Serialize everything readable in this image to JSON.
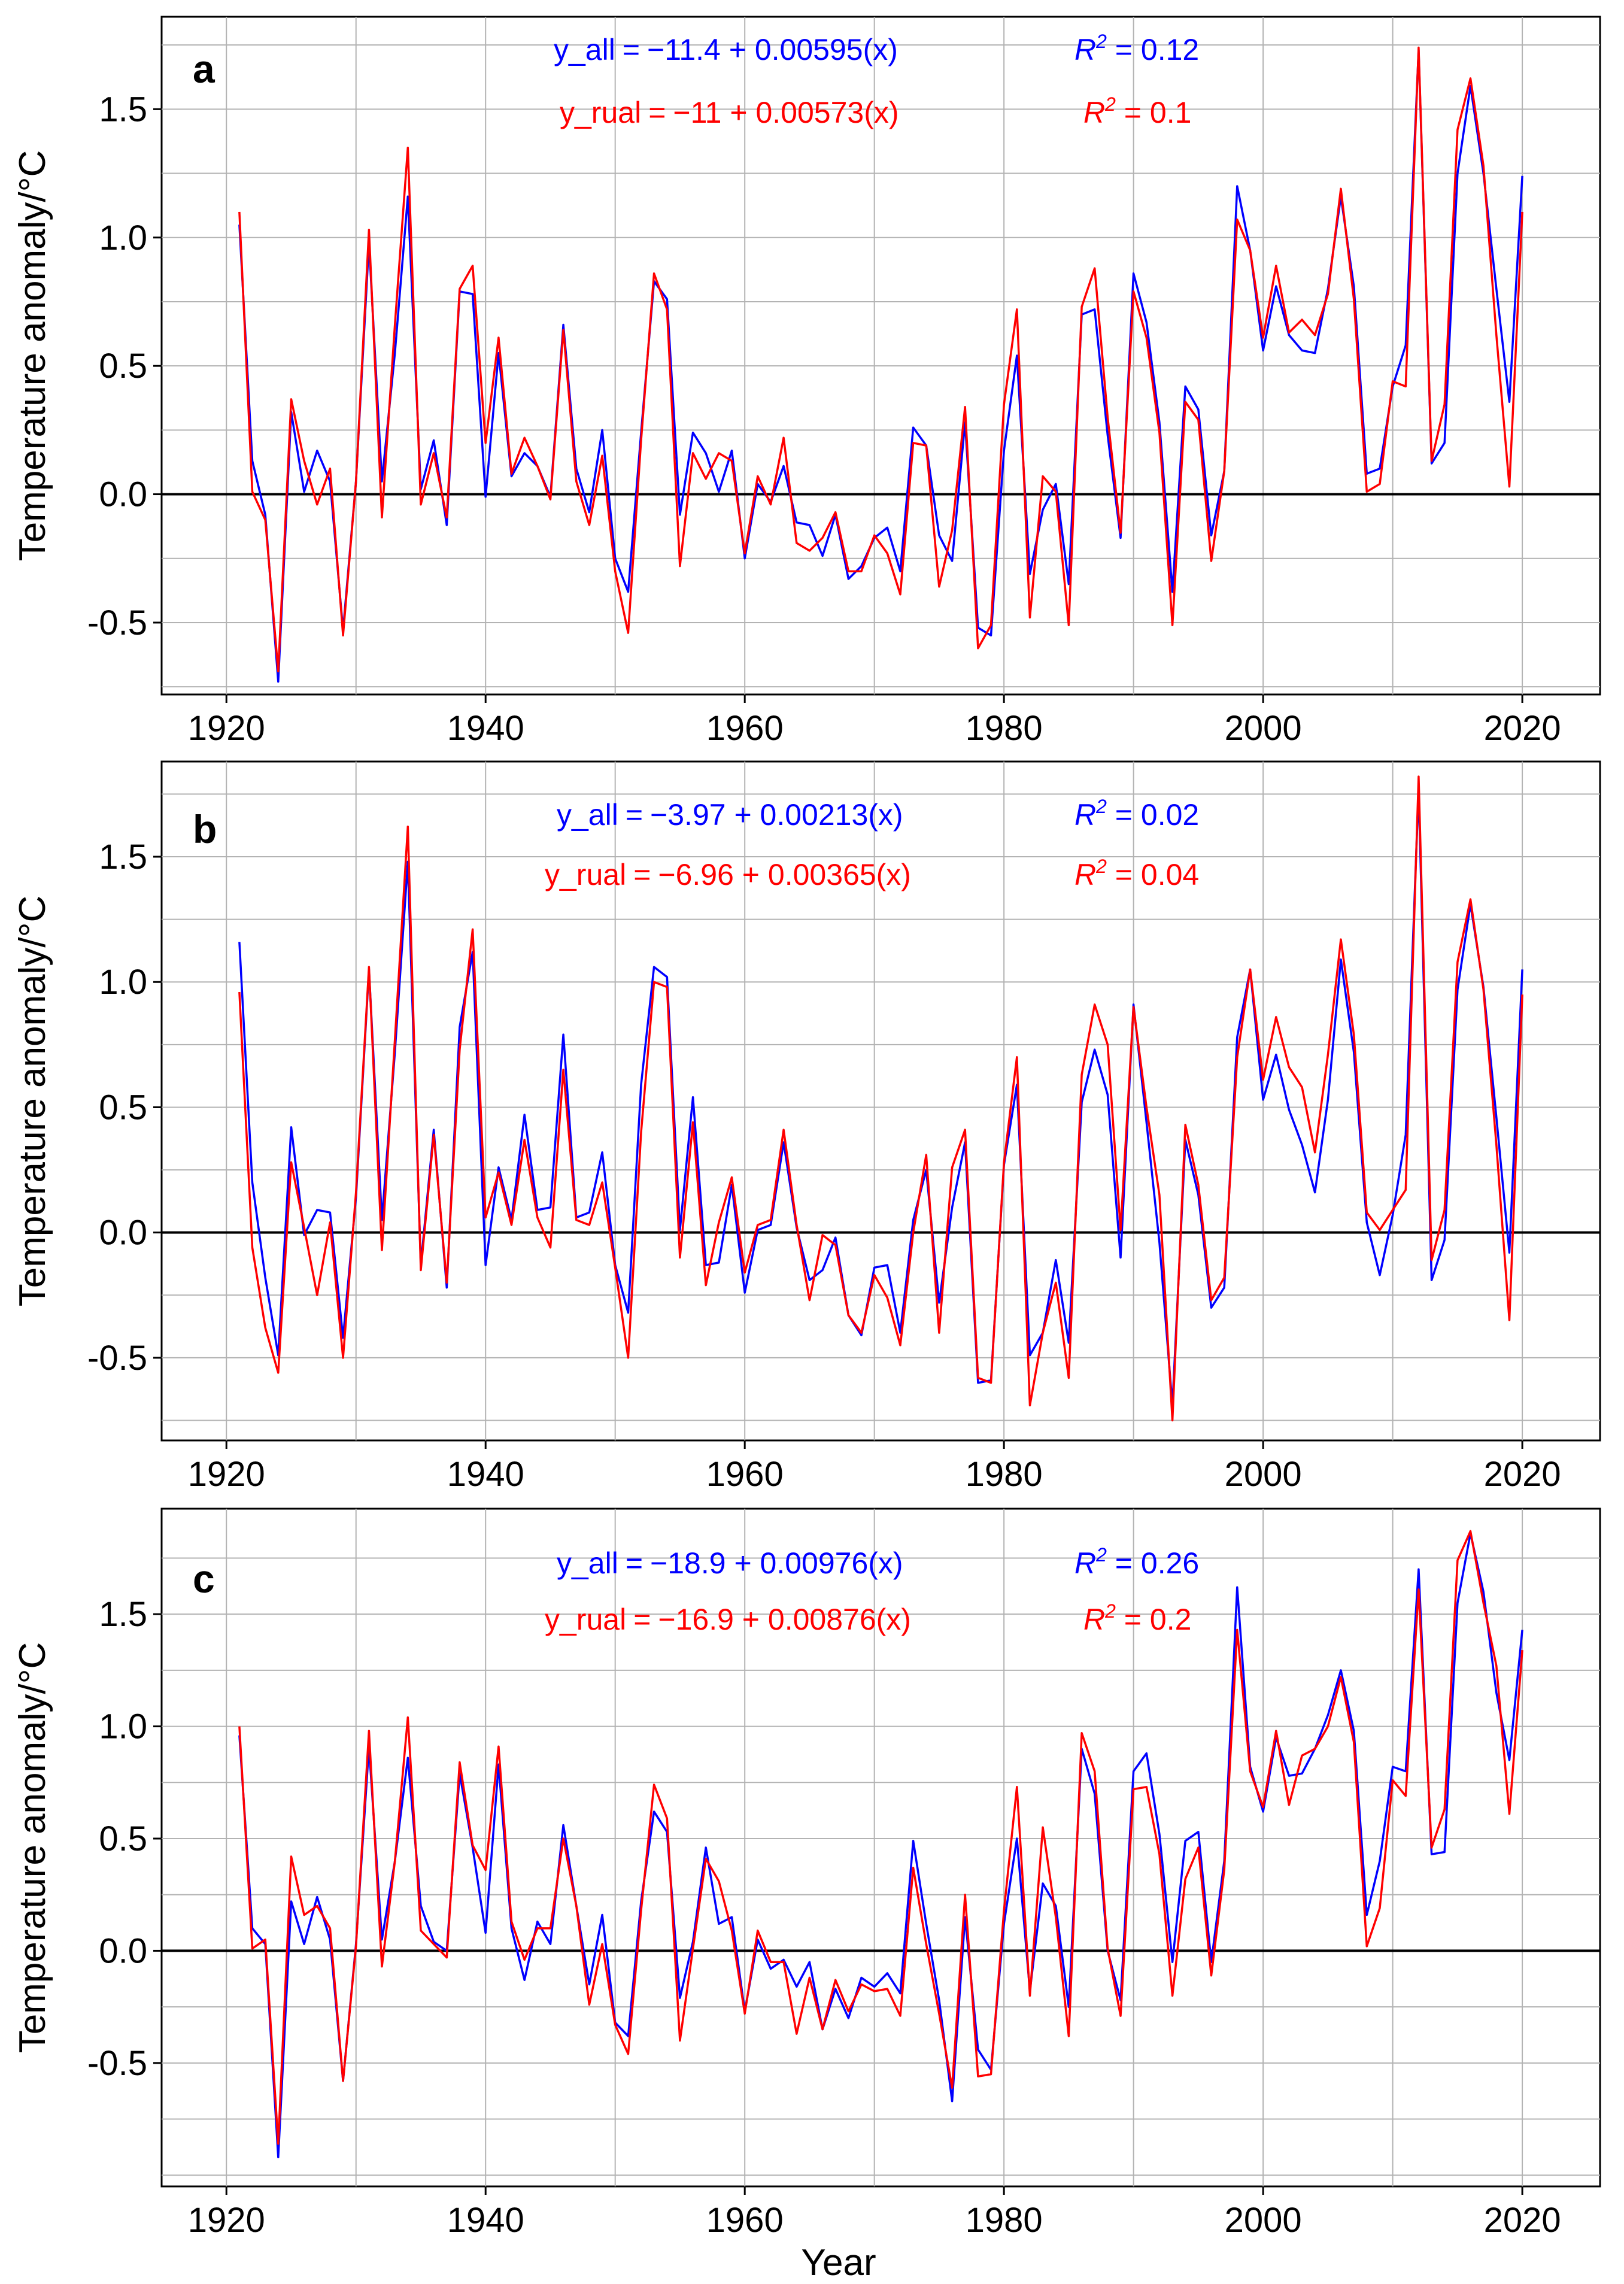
{
  "figure": {
    "xlabel": "Year",
    "ylabel": "Temperature anomaly/°C"
  },
  "colors": {
    "all": "#0000ff",
    "rural": "#ff0000",
    "zero_line": "#000000",
    "grid": "#b3b3b3"
  },
  "chart_data": [
    {
      "type": "line",
      "panel": "a",
      "xlabel": "Year",
      "ylabel": "Temperature anomaly/°C",
      "xlim": [
        1915,
        2026
      ],
      "ylim": [
        -0.78,
        1.86
      ],
      "xticks": [
        1920,
        1940,
        1960,
        1980,
        2000,
        2020
      ],
      "xtick_labels": [
        "1920",
        "1940",
        "1960",
        "1980",
        "2000",
        "2020"
      ],
      "yticks": [
        -0.5,
        0.0,
        0.5,
        1.0,
        1.5
      ],
      "ytick_labels": [
        "-0.5",
        "0.0",
        "0.5",
        "1.0",
        "1.5"
      ],
      "annotations": {
        "eq_all_lhs": "y_all",
        "eq_all_rhs": "−11.4 + 0.00595(x)",
        "eq_rural_lhs": "y_rual",
        "eq_rural_rhs": "−11 + 0.00573(x)",
        "r2_all_value": "0.12",
        "r2_rural_value": "0.1"
      },
      "x_start": 1921,
      "series": [
        {
          "name": "y_all",
          "color": "#0000ff",
          "values": [
            1.05,
            0.13,
            -0.08,
            -0.73,
            0.32,
            0.01,
            0.17,
            0.05,
            -0.53,
            0.05,
            0.98,
            0.05,
            0.55,
            1.16,
            0.02,
            0.21,
            -0.12,
            0.79,
            0.78,
            -0.01,
            0.55,
            0.07,
            0.16,
            0.11,
            -0.01,
            0.66,
            0.1,
            -0.07,
            0.25,
            -0.25,
            -0.38,
            0.24,
            0.83,
            0.76,
            -0.08,
            0.24,
            0.16,
            0.01,
            0.17,
            -0.25,
            0.04,
            -0.03,
            0.11,
            -0.11,
            -0.12,
            -0.24,
            -0.08,
            -0.33,
            -0.28,
            -0.17,
            -0.13,
            -0.3,
            0.26,
            0.19,
            -0.16,
            -0.26,
            0.28,
            -0.52,
            -0.55,
            0.17,
            0.54,
            -0.31,
            -0.06,
            0.04,
            -0.35,
            0.7,
            0.72,
            0.23,
            -0.17,
            0.86,
            0.67,
            0.28,
            -0.38,
            0.42,
            0.33,
            -0.16,
            0.09,
            1.2,
            0.95,
            0.56,
            0.81,
            0.62,
            0.56,
            0.55,
            0.8,
            1.16,
            0.81,
            0.08,
            0.1,
            0.42,
            0.58,
            1.73,
            0.12,
            0.2,
            1.25,
            1.59,
            1.25,
            0.8,
            0.36,
            1.24
          ]
        },
        {
          "name": "y_rual",
          "color": "#ff0000",
          "values": [
            1.1,
            0.01,
            -0.1,
            -0.69,
            0.37,
            0.13,
            -0.04,
            0.1,
            -0.55,
            0.05,
            1.03,
            -0.09,
            0.66,
            1.35,
            -0.04,
            0.16,
            -0.09,
            0.8,
            0.89,
            0.2,
            0.61,
            0.08,
            0.22,
            0.11,
            -0.02,
            0.64,
            0.05,
            -0.12,
            0.15,
            -0.3,
            -0.54,
            0.21,
            0.86,
            0.72,
            -0.28,
            0.16,
            0.06,
            0.16,
            0.13,
            -0.23,
            0.07,
            -0.04,
            0.22,
            -0.19,
            -0.22,
            -0.17,
            -0.07,
            -0.3,
            -0.3,
            -0.16,
            -0.23,
            -0.39,
            0.2,
            0.19,
            -0.36,
            -0.14,
            0.34,
            -0.6,
            -0.51,
            0.35,
            0.72,
            -0.48,
            0.07,
            0.01,
            -0.51,
            0.73,
            0.88,
            0.3,
            -0.15,
            0.79,
            0.61,
            0.24,
            -0.51,
            0.36,
            0.29,
            -0.26,
            0.09,
            1.07,
            0.95,
            0.61,
            0.89,
            0.63,
            0.68,
            0.62,
            0.78,
            1.19,
            0.76,
            0.01,
            0.04,
            0.44,
            0.42,
            1.74,
            0.13,
            0.35,
            1.42,
            1.62,
            1.28,
            0.62,
            0.03,
            1.1
          ]
        }
      ]
    },
    {
      "type": "line",
      "panel": "b",
      "xlabel": "Year",
      "ylabel": "Temperature anomaly/°C",
      "xlim": [
        1915,
        2026
      ],
      "ylim": [
        -0.83,
        1.88
      ],
      "xticks": [
        1920,
        1940,
        1960,
        1980,
        2000,
        2020
      ],
      "xtick_labels": [
        "1920",
        "1940",
        "1960",
        "1980",
        "2000",
        "2020"
      ],
      "yticks": [
        -0.5,
        0.0,
        0.5,
        1.0,
        1.5
      ],
      "ytick_labels": [
        "-0.5",
        "0.0",
        "0.5",
        "1.0",
        "1.5"
      ],
      "annotations": {
        "eq_all_lhs": "y_all",
        "eq_all_rhs": "−3.97 + 0.00213(x)",
        "eq_rural_lhs": "y_rual",
        "eq_rural_rhs": "−6.96 + 0.00365(x)",
        "r2_all_value": "0.02",
        "r2_rural_value": "0.04"
      },
      "x_start": 1921,
      "series": [
        {
          "name": "y_all",
          "color": "#0000ff",
          "values": [
            1.16,
            0.2,
            -0.18,
            -0.49,
            0.42,
            -0.01,
            0.09,
            0.08,
            -0.42,
            0.14,
            1.05,
            0.05,
            0.72,
            1.48,
            -0.13,
            0.41,
            -0.22,
            0.82,
            1.12,
            -0.13,
            0.26,
            0.05,
            0.47,
            0.09,
            0.1,
            0.79,
            0.06,
            0.08,
            0.32,
            -0.13,
            -0.32,
            0.59,
            1.06,
            1.02,
            0.01,
            0.54,
            -0.13,
            -0.12,
            0.19,
            -0.24,
            0.01,
            0.03,
            0.36,
            0.02,
            -0.19,
            -0.15,
            -0.02,
            -0.33,
            -0.41,
            -0.14,
            -0.13,
            -0.4,
            0.05,
            0.25,
            -0.28,
            0.1,
            0.36,
            -0.6,
            -0.59,
            0.27,
            0.59,
            -0.49,
            -0.4,
            -0.11,
            -0.44,
            0.52,
            0.73,
            0.55,
            -0.1,
            0.91,
            0.44,
            -0.04,
            -0.69,
            0.37,
            0.15,
            -0.3,
            -0.22,
            0.78,
            1.05,
            0.53,
            0.71,
            0.49,
            0.35,
            0.16,
            0.53,
            1.09,
            0.72,
            0.04,
            -0.17,
            0.07,
            0.39,
            1.77,
            -0.19,
            -0.03,
            0.97,
            1.31,
            0.98,
            0.46,
            -0.08,
            1.05
          ]
        },
        {
          "name": "y_rual",
          "color": "#ff0000",
          "values": [
            0.96,
            -0.06,
            -0.38,
            -0.56,
            0.28,
            0.02,
            -0.25,
            0.04,
            -0.5,
            0.16,
            1.06,
            -0.07,
            0.77,
            1.62,
            -0.15,
            0.39,
            -0.2,
            0.73,
            1.21,
            0.06,
            0.24,
            0.03,
            0.37,
            0.06,
            -0.06,
            0.65,
            0.05,
            0.03,
            0.2,
            -0.14,
            -0.5,
            0.4,
            1.0,
            0.98,
            -0.1,
            0.44,
            -0.21,
            0.04,
            0.22,
            -0.16,
            0.03,
            0.05,
            0.41,
            0.03,
            -0.27,
            -0.01,
            -0.05,
            -0.33,
            -0.4,
            -0.17,
            -0.26,
            -0.45,
            0.0,
            0.31,
            -0.4,
            0.26,
            0.41,
            -0.58,
            -0.6,
            0.28,
            0.7,
            -0.69,
            -0.4,
            -0.2,
            -0.58,
            0.63,
            0.91,
            0.75,
            0.01,
            0.9,
            0.5,
            0.15,
            -0.75,
            0.43,
            0.19,
            -0.27,
            -0.18,
            0.7,
            1.05,
            0.61,
            0.86,
            0.66,
            0.58,
            0.32,
            0.71,
            1.17,
            0.79,
            0.08,
            0.01,
            0.09,
            0.17,
            1.82,
            -0.11,
            0.09,
            1.08,
            1.33,
            0.97,
            0.35,
            -0.35,
            0.95
          ]
        }
      ]
    },
    {
      "type": "line",
      "panel": "c",
      "xlabel": "Year",
      "ylabel": "Temperature anomaly/°C",
      "xlim": [
        1915,
        2026
      ],
      "ylim": [
        -1.05,
        1.97
      ],
      "xticks": [
        1920,
        1940,
        1960,
        1980,
        2000,
        2020
      ],
      "xtick_labels": [
        "1920",
        "1940",
        "1960",
        "1980",
        "2000",
        "2020"
      ],
      "yticks": [
        -0.5,
        0.0,
        0.5,
        1.0,
        1.5
      ],
      "ytick_labels": [
        "-0.5",
        "0.0",
        "0.5",
        "1.0",
        "1.5"
      ],
      "annotations": {
        "eq_all_lhs": "y_all",
        "eq_all_rhs": "−18.9 + 0.00976(x)",
        "eq_rural_lhs": "y_rual",
        "eq_rural_rhs": "−16.9 + 0.00876(x)",
        "r2_all_value": "0.26",
        "r2_rural_value": "0.2"
      },
      "x_start": 1921,
      "series": [
        {
          "name": "y_all",
          "color": "#0000ff",
          "values": [
            0.96,
            0.1,
            0.03,
            -0.92,
            0.22,
            0.03,
            0.24,
            0.05,
            -0.58,
            0.03,
            0.91,
            0.05,
            0.4,
            0.86,
            0.2,
            0.04,
            0.0,
            0.79,
            0.46,
            0.08,
            0.83,
            0.1,
            -0.13,
            0.13,
            0.03,
            0.56,
            0.2,
            -0.15,
            0.16,
            -0.32,
            -0.38,
            0.22,
            0.62,
            0.53,
            -0.21,
            0.04,
            0.46,
            0.12,
            0.15,
            -0.27,
            0.05,
            -0.08,
            -0.04,
            -0.16,
            -0.05,
            -0.35,
            -0.17,
            -0.3,
            -0.12,
            -0.16,
            -0.1,
            -0.19,
            0.49,
            0.12,
            -0.22,
            -0.67,
            0.15,
            -0.44,
            -0.53,
            0.12,
            0.5,
            -0.18,
            0.3,
            0.2,
            -0.25,
            0.9,
            0.7,
            0.0,
            -0.22,
            0.8,
            0.88,
            0.52,
            -0.05,
            0.49,
            0.53,
            -0.05,
            0.4,
            1.62,
            0.82,
            0.62,
            0.95,
            0.78,
            0.79,
            0.9,
            1.05,
            1.25,
            0.98,
            0.16,
            0.4,
            0.82,
            0.8,
            1.7,
            0.43,
            0.44,
            1.55,
            1.86,
            1.6,
            1.15,
            0.85,
            1.43
          ]
        },
        {
          "name": "y_rual",
          "color": "#ff0000",
          "values": [
            1.0,
            0.01,
            0.05,
            -0.86,
            0.42,
            0.16,
            0.2,
            0.1,
            -0.58,
            0.02,
            0.98,
            -0.07,
            0.4,
            1.04,
            0.09,
            0.03,
            -0.03,
            0.84,
            0.47,
            0.36,
            0.91,
            0.13,
            -0.04,
            0.1,
            0.1,
            0.5,
            0.2,
            -0.24,
            0.03,
            -0.33,
            -0.46,
            0.18,
            0.74,
            0.59,
            -0.4,
            0.01,
            0.41,
            0.31,
            0.09,
            -0.28,
            0.09,
            -0.05,
            -0.05,
            -0.37,
            -0.12,
            -0.35,
            -0.13,
            -0.27,
            -0.15,
            -0.18,
            -0.17,
            -0.29,
            0.37,
            0.03,
            -0.28,
            -0.61,
            0.25,
            -0.56,
            -0.55,
            0.18,
            0.73,
            -0.2,
            0.55,
            0.15,
            -0.38,
            0.97,
            0.8,
            0.01,
            -0.29,
            0.72,
            0.73,
            0.43,
            -0.2,
            0.32,
            0.46,
            -0.11,
            0.36,
            1.43,
            0.8,
            0.64,
            0.98,
            0.65,
            0.87,
            0.9,
            1.0,
            1.22,
            0.93,
            0.02,
            0.19,
            0.76,
            0.69,
            1.61,
            0.46,
            0.63,
            1.74,
            1.87,
            1.55,
            1.27,
            0.61,
            1.34
          ]
        }
      ]
    }
  ]
}
